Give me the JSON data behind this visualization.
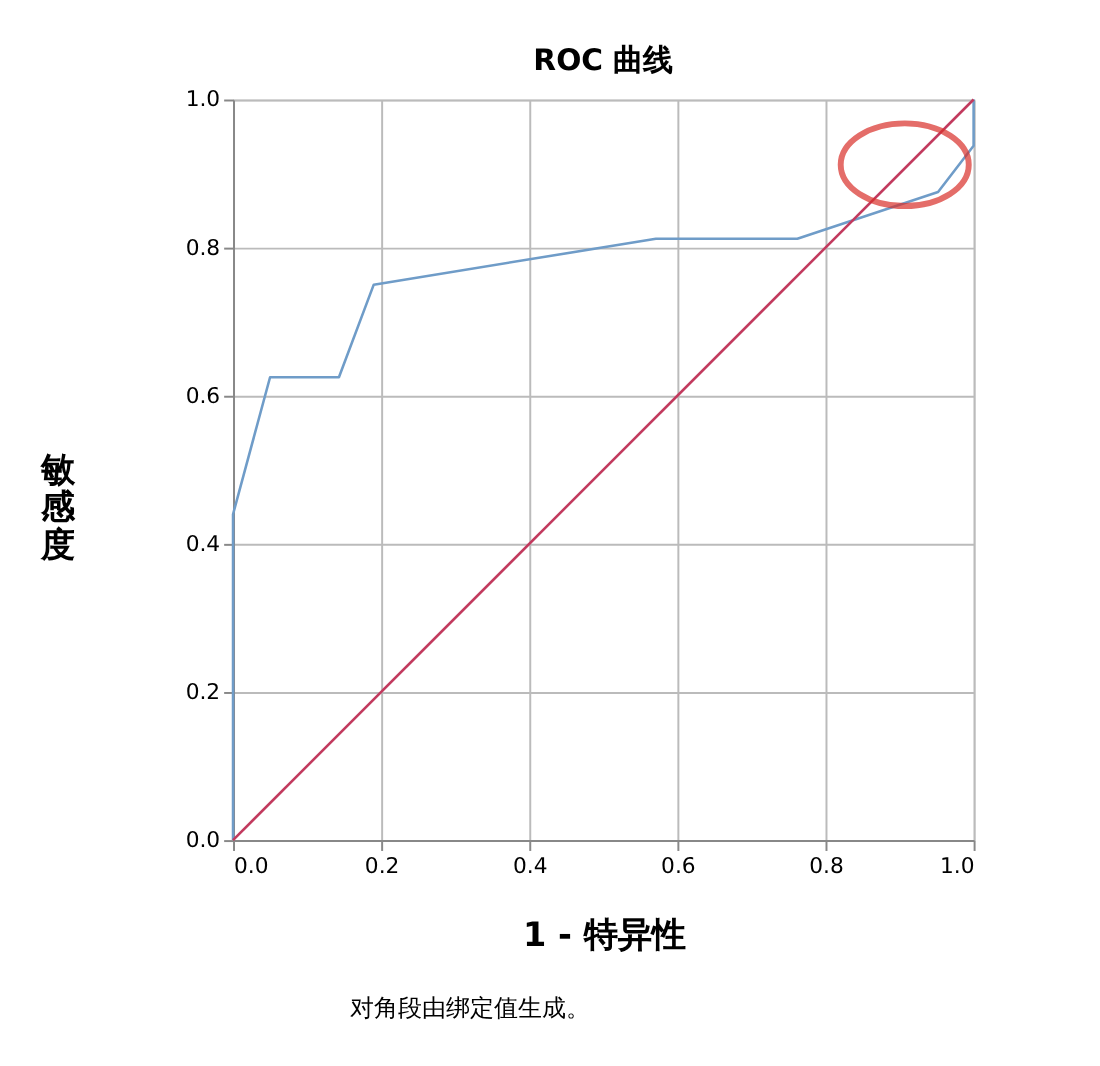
{
  "chart_data": {
    "type": "line",
    "title": "ROC 曲线",
    "xlabel": "1 - 特异性",
    "ylabel": "敏感度",
    "annotations": [
      "对角段由绑定值生成。"
    ],
    "series": [
      {
        "color": "#6f9cc8",
        "x": [
          0,
          0,
          0.05,
          0.143,
          0.19,
          0.571,
          0.762,
          0.952,
          1,
          1
        ],
        "values": [
          0,
          0.44,
          0.625,
          0.625,
          0.75,
          0.812,
          0.812,
          0.875,
          0.9375,
          1
        ]
      },
      {
        "color": "#c23a5e",
        "x": [
          0,
          1
        ],
        "values": [
          0,
          1
        ]
      }
    ],
    "xlim": [
      0,
      1
    ],
    "ylim": [
      0,
      1
    ],
    "xticks": [
      {
        "value": 0,
        "label": "0.0"
      },
      {
        "value": 0.2,
        "label": "0.2"
      },
      {
        "value": 0.4,
        "label": "0.4"
      },
      {
        "value": 0.6,
        "label": "0.6"
      },
      {
        "value": 0.8,
        "label": "0.8"
      },
      {
        "value": 1,
        "label": "1.0"
      }
    ],
    "yticks": [
      {
        "value": 0,
        "label": "0.0"
      },
      {
        "value": 0.2,
        "label": "0.2"
      },
      {
        "value": 0.4,
        "label": "0.4"
      },
      {
        "value": 0.6,
        "label": "0.6"
      },
      {
        "value": 0.8,
        "label": "0.8"
      },
      {
        "value": 1,
        "label": "1.0"
      }
    ],
    "grid": true,
    "marker": "none",
    "line_style": "solid"
  }
}
